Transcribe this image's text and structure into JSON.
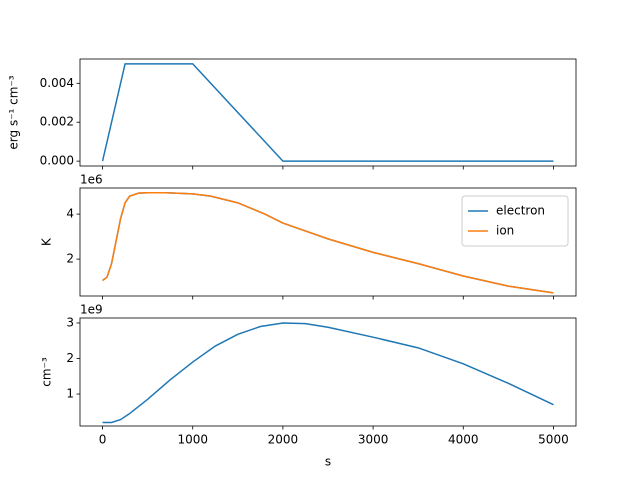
{
  "chart_data": [
    {
      "type": "line",
      "y_label": "erg s⁻¹ cm⁻³",
      "x": [
        0,
        250,
        1000,
        2000,
        5000
      ],
      "series": [
        {
          "color": "#1f77b4",
          "values": [
            0,
            0.005,
            0.005,
            0,
            0
          ]
        }
      ],
      "xlim": [
        -250,
        5250
      ],
      "xticks": [
        0,
        1000,
        2000,
        3000,
        4000,
        5000
      ],
      "ylim": [
        -0.00025,
        0.00525
      ],
      "yticks": [
        {
          "value": 0,
          "label": "0.000"
        },
        {
          "value": 0.002,
          "label": "0.002"
        },
        {
          "value": 0.004,
          "label": "0.004"
        }
      ]
    },
    {
      "type": "line",
      "y_label": "K",
      "offset_text": "1e6",
      "legend": "upper right",
      "x": [
        0,
        50,
        100,
        150,
        200,
        250,
        300,
        400,
        500,
        700,
        1000,
        1200,
        1500,
        1800,
        2000,
        2500,
        3000,
        3500,
        4000,
        4500,
        5000
      ],
      "series": [
        {
          "name": "electron",
          "color": "#1f77b4",
          "values": [
            1.05,
            1.2,
            1.8,
            2.8,
            3.8,
            4.5,
            4.8,
            4.93,
            4.95,
            4.95,
            4.9,
            4.8,
            4.5,
            4.0,
            3.6,
            2.9,
            2.3,
            1.8,
            1.25,
            0.8,
            0.5
          ]
        },
        {
          "name": "ion",
          "color": "#ff7f0e",
          "values": [
            1.05,
            1.2,
            1.8,
            2.8,
            3.8,
            4.5,
            4.8,
            4.93,
            4.95,
            4.95,
            4.9,
            4.8,
            4.5,
            4.0,
            3.6,
            2.9,
            2.3,
            1.8,
            1.25,
            0.8,
            0.5
          ]
        }
      ],
      "xlim": [
        -250,
        5250
      ],
      "xticks": [
        0,
        1000,
        2000,
        3000,
        4000,
        5000
      ],
      "ylim": [
        0.36,
        5.16
      ],
      "yticks": [
        2,
        4
      ]
    },
    {
      "type": "line",
      "y_label": "cm⁻³",
      "x_label": "s",
      "offset_text": "1e9",
      "x": [
        0,
        100,
        200,
        300,
        500,
        750,
        1000,
        1250,
        1500,
        1750,
        2000,
        2250,
        2500,
        3000,
        3500,
        4000,
        4500,
        5000
      ],
      "series": [
        {
          "color": "#1f77b4",
          "values": [
            0.2,
            0.2,
            0.28,
            0.45,
            0.85,
            1.4,
            1.9,
            2.35,
            2.68,
            2.9,
            3.0,
            2.98,
            2.88,
            2.6,
            2.3,
            1.85,
            1.3,
            0.7
          ]
        }
      ],
      "xlim": [
        -250,
        5250
      ],
      "xticks": [
        0,
        1000,
        2000,
        3000,
        4000,
        5000
      ],
      "ylim": [
        0.1,
        3.14
      ],
      "yticks": [
        1,
        2,
        3
      ]
    }
  ]
}
